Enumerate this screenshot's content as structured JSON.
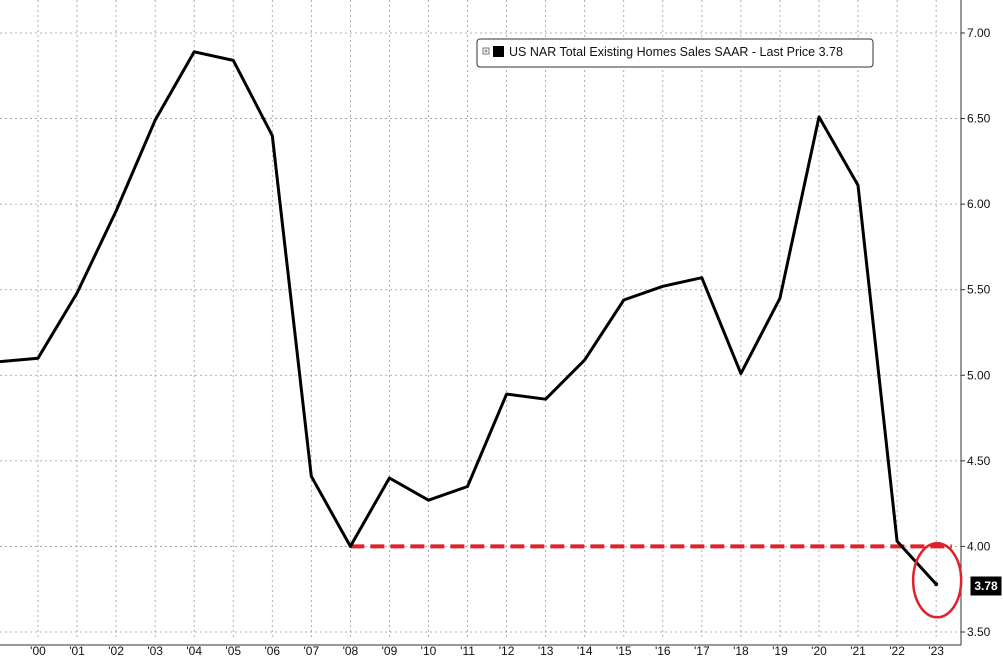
{
  "chart_data": {
    "type": "line",
    "title": "",
    "xlabel": "",
    "ylabel": "",
    "ylim": [
      3.5,
      7.0
    ],
    "yticks": [
      "3.50",
      "4.00",
      "4.50",
      "5.00",
      "5.50",
      "6.00",
      "6.50",
      "7.00"
    ],
    "x_tick_labels": [
      "'00",
      "'01",
      "'02",
      "'03",
      "'04",
      "'05",
      "'06",
      "'07",
      "'08",
      "'09",
      "'10",
      "'11",
      "'12",
      "'13",
      "'14",
      "'15",
      "'16",
      "'17",
      "'18",
      "'19",
      "'20",
      "'21",
      "'22",
      "'23"
    ],
    "x": [
      1999,
      2000,
      2001,
      2002,
      2003,
      2004,
      2005,
      2006,
      2007,
      2008,
      2009,
      2010,
      2011,
      2012,
      2013,
      2014,
      2015,
      2016,
      2017,
      2018,
      2019,
      2020,
      2021,
      2022,
      2023
    ],
    "series": [
      {
        "name": "US NAR Total Existing Homes Sales SAAR",
        "color": "#000000",
        "values": [
          5.08,
          5.1,
          5.48,
          5.96,
          6.49,
          6.89,
          6.84,
          6.4,
          4.41,
          4.0,
          4.4,
          4.27,
          4.35,
          4.89,
          4.86,
          5.09,
          5.44,
          5.52,
          5.57,
          5.01,
          5.45,
          6.51,
          6.11,
          4.03,
          3.78
        ]
      }
    ],
    "legend": {
      "label": "US NAR Total Existing Homes Sales SAAR - Last Price 3.78",
      "placement": "top-center"
    },
    "last_price_label": "3.78",
    "annotations": [
      {
        "type": "reference-line",
        "style": "dashed",
        "color": "#e0202a",
        "y": 4.0,
        "x_start": 2008,
        "x_end": 2023.4
      },
      {
        "type": "ellipse-highlight",
        "color": "#e0202a",
        "x": 2023,
        "y": 3.82
      }
    ],
    "grid": true,
    "y_axis_side": "right"
  }
}
